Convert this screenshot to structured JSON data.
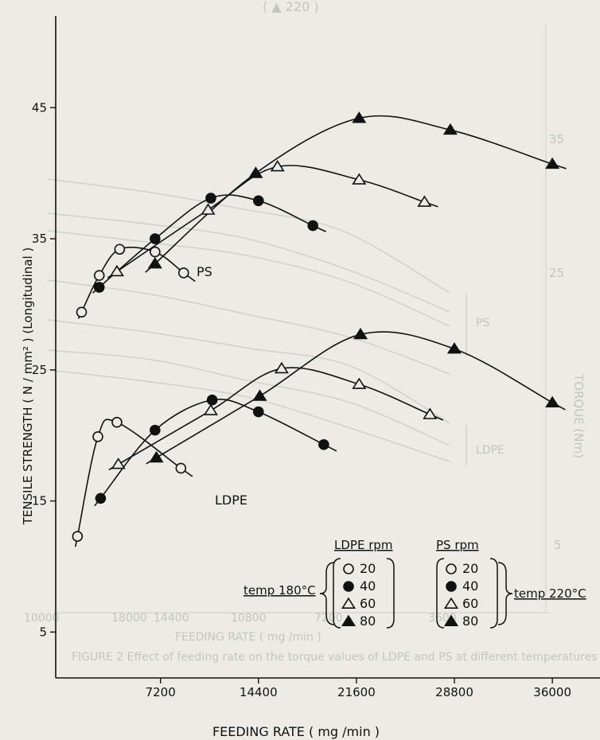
{
  "chart_data": {
    "type": "scatter",
    "xlabel": "FEEDING RATE ( mg /min )",
    "ylabel": "TENSILE STRENGTH ( N / mm² ) (Longitudinal )",
    "x_ticks": [
      7200,
      14400,
      21600,
      28800,
      36000
    ],
    "x_tick_labels": [
      "7200",
      "14400",
      "21600",
      "28800",
      "36000"
    ],
    "y_ticks": [
      5,
      15,
      25,
      35,
      45
    ],
    "y_tick_labels": [
      "5",
      "15",
      "25",
      "35",
      "45"
    ],
    "xlim": [
      -500,
      39500
    ],
    "ylim": [
      1.5,
      52
    ],
    "grid": false,
    "annotations": [
      {
        "text": "PS",
        "x": 10200,
        "y": 32.2
      },
      {
        "text": "LDPE",
        "x": 11500,
        "y": 16.1
      }
    ],
    "legend": {
      "position": "bottom-right",
      "ldpe_title": "LDPE rpm",
      "ps_title": "PS rpm",
      "ldpe_temp": "temp 180°C",
      "ps_temp": "temp 220°C",
      "rpms": [
        "20",
        "40",
        "60",
        "80"
      ]
    },
    "series": [
      {
        "name": "PS 20",
        "polymer": "PS",
        "rpm": 20,
        "marker": "open-circle",
        "points": [
          [
            1400,
            29.4
          ],
          [
            2700,
            32.2
          ],
          [
            4200,
            34.2
          ],
          [
            6800,
            34.0
          ],
          [
            8900,
            32.4
          ]
        ]
      },
      {
        "name": "PS 40",
        "polymer": "PS",
        "rpm": 40,
        "marker": "filled-circle",
        "points": [
          [
            2700,
            31.3
          ],
          [
            6800,
            35.0
          ],
          [
            10900,
            38.1
          ],
          [
            14400,
            37.9
          ],
          [
            18400,
            36.0
          ]
        ]
      },
      {
        "name": "PS 60",
        "polymer": "PS",
        "rpm": 60,
        "marker": "open-triangle",
        "points": [
          [
            4000,
            32.5
          ],
          [
            10700,
            37.2
          ],
          [
            15800,
            40.5
          ],
          [
            21800,
            39.5
          ],
          [
            26600,
            37.8
          ]
        ]
      },
      {
        "name": "PS 80",
        "polymer": "PS",
        "rpm": 80,
        "marker": "filled-triangle",
        "points": [
          [
            6800,
            33.1
          ],
          [
            14200,
            40.0
          ],
          [
            21800,
            44.2
          ],
          [
            28500,
            43.3
          ],
          [
            36000,
            40.7
          ]
        ]
      },
      {
        "name": "LDPE 20",
        "polymer": "LDPE",
        "rpm": 20,
        "marker": "open-circle",
        "points": [
          [
            1100,
            12.3
          ],
          [
            2600,
            19.9
          ],
          [
            4000,
            21.0
          ],
          [
            8700,
            17.5
          ]
        ]
      },
      {
        "name": "LDPE 40",
        "polymer": "LDPE",
        "rpm": 40,
        "marker": "filled-circle",
        "points": [
          [
            2800,
            15.2
          ],
          [
            6800,
            20.4
          ],
          [
            11000,
            22.7
          ],
          [
            14400,
            21.8
          ],
          [
            19200,
            19.3
          ]
        ]
      },
      {
        "name": "LDPE 60",
        "polymer": "LDPE",
        "rpm": 60,
        "marker": "open-triangle",
        "points": [
          [
            4100,
            17.8
          ],
          [
            10900,
            21.9
          ],
          [
            16100,
            25.1
          ],
          [
            21800,
            23.9
          ],
          [
            27000,
            21.6
          ]
        ]
      },
      {
        "name": "LDPE 80",
        "polymer": "LDPE",
        "rpm": 80,
        "marker": "filled-triangle",
        "points": [
          [
            6900,
            18.3
          ],
          [
            14500,
            23.0
          ],
          [
            21900,
            27.7
          ],
          [
            28800,
            26.6
          ],
          [
            36000,
            22.5
          ]
        ]
      }
    ]
  },
  "bleed_through": {
    "tick_labels": [
      "10000",
      "18000",
      "14400",
      "10800",
      "7200",
      "3600"
    ],
    "right_ticks": [
      "35",
      "25",
      "5"
    ],
    "xlabel": "FEEDING RATE ( mg /min )",
    "side_labels": [
      "PS",
      "LDPE"
    ],
    "ylabel": "TORQUE (Nm)",
    "caption": "FIGURE 2   Effect of feeding rate on the torque values of LDPE and PS at different temperatures",
    "top_fragment": "( ▲ 220 )"
  }
}
